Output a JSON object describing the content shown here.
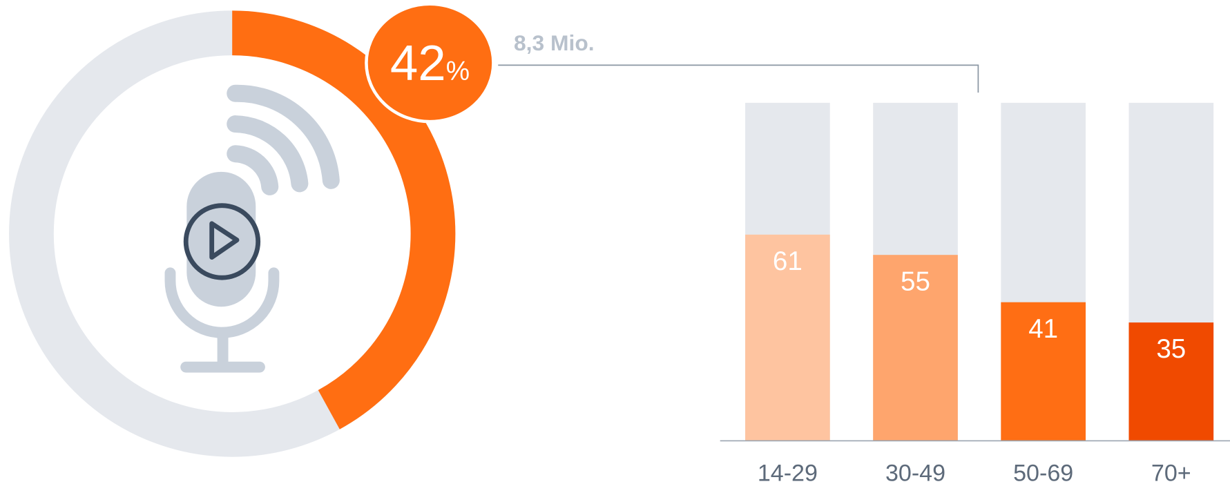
{
  "chart_data": [
    {
      "type": "pie",
      "values": [
        42
      ],
      "unit": "%",
      "color": "#ff6e12",
      "track_color": "#e5e8ed",
      "annotation": "8,3 Mio."
    },
    {
      "type": "bar",
      "categories": [
        "14-29",
        "30-49",
        "50-69",
        "70+"
      ],
      "values": [
        61,
        55,
        41,
        35
      ],
      "colors": [
        "#fec4a0",
        "#fea56d",
        "#ff6e14",
        "#f04a00"
      ],
      "track_color": "#e5e8ed",
      "ylim": [
        0,
        100
      ]
    }
  ]
}
